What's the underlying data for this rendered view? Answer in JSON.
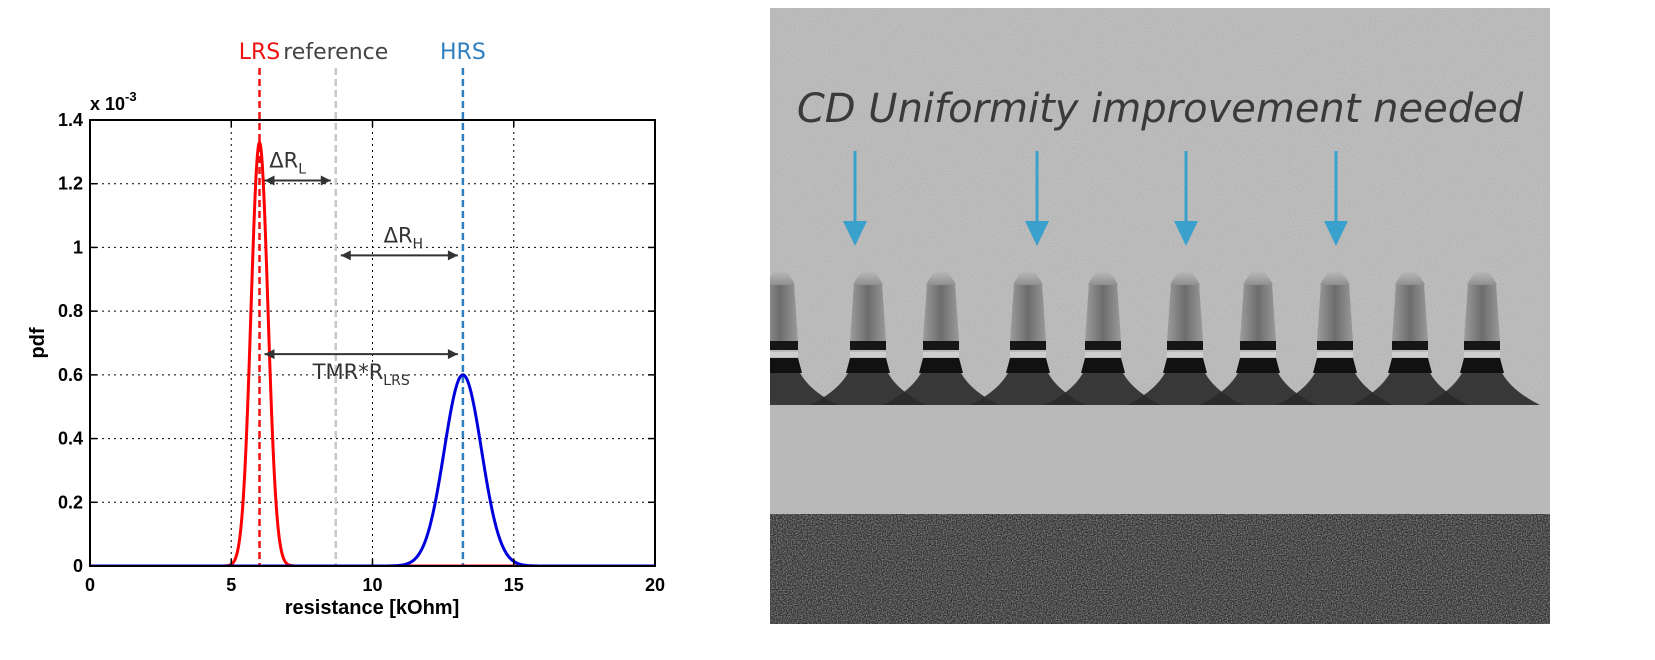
{
  "chart_data": {
    "type": "line",
    "xlabel": "resistance [kOhm]",
    "ylabel": "pdf",
    "y_multiplier": "x 10",
    "y_multiplier_exp": "-3",
    "xlim": [
      0,
      20
    ],
    "ylim": [
      0,
      1.4
    ],
    "x_ticks": [
      "0",
      "5",
      "10",
      "15",
      "20"
    ],
    "y_ticks": [
      "0",
      "0.2",
      "0.4",
      "0.6",
      "0.8",
      "1",
      "1.2",
      "1.4"
    ],
    "grid": "dotted",
    "series": [
      {
        "name": "LRS",
        "color": "#ff0000",
        "mean": 6.0,
        "sigma": 0.3,
        "peak": 1.33
      },
      {
        "name": "HRS",
        "color": "#0000dd",
        "mean": 13.2,
        "sigma": 0.66,
        "peak": 0.6
      }
    ],
    "vlines": [
      {
        "label": "LRS",
        "x": 6.0,
        "color": "#ee1111"
      },
      {
        "label": "reference",
        "x": 8.7,
        "color": "#c8c8c8"
      },
      {
        "label": "HRS",
        "x": 13.2,
        "color": "#2f7fc0"
      }
    ],
    "annotations": [
      {
        "text": "ΔR",
        "sub": "L",
        "from": 6.0,
        "to": 8.7,
        "y": 1.21
      },
      {
        "text": "ΔR",
        "sub": "H",
        "from": 8.7,
        "to": 13.2,
        "y": 0.975
      },
      {
        "text": "TMR*R",
        "sub": "LRS",
        "from": 6.0,
        "to": 13.2,
        "y": 0.665
      }
    ]
  },
  "tem_image": {
    "title": "CD Uniformity improvement needed",
    "arrow_color": "#3aa0cc"
  }
}
